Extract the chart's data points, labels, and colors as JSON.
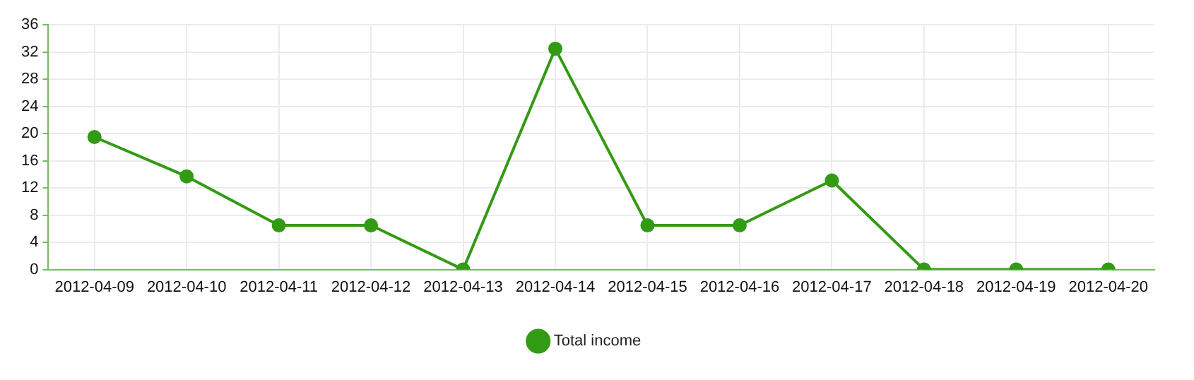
{
  "chart_data": {
    "type": "line",
    "categories": [
      "2012-04-09",
      "2012-04-10",
      "2012-04-11",
      "2012-04-12",
      "2012-04-13",
      "2012-04-14",
      "2012-04-15",
      "2012-04-16",
      "2012-04-17",
      "2012-04-18",
      "2012-04-19",
      "2012-04-20"
    ],
    "series": [
      {
        "name": "Total income",
        "color": "#339a14",
        "values": [
          19.5,
          13.7,
          6.5,
          6.5,
          0,
          32.5,
          6.5,
          6.5,
          13.1,
          0,
          0,
          0
        ]
      }
    ],
    "ylim": [
      0,
      36
    ],
    "yticks": [
      0,
      4,
      8,
      12,
      16,
      20,
      24,
      28,
      32,
      36
    ],
    "grid": true,
    "legend": "bottom",
    "marker": "circle",
    "line_style": "solid"
  }
}
